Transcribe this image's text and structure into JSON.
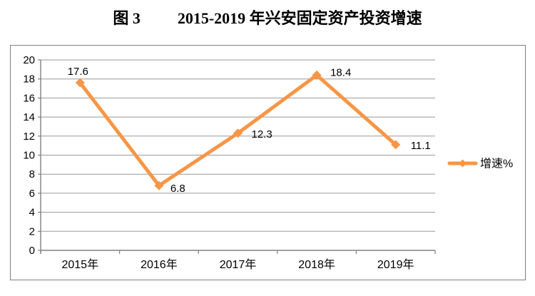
{
  "page": {
    "title_prefix": "图 3",
    "title_main": "2015-2019 年兴安固定资产投资增速"
  },
  "chart_data": {
    "type": "line",
    "title": "图 3 2015-2019 年兴安固定资产投资增速",
    "categories": [
      "2015年",
      "2016年",
      "2017年",
      "2018年",
      "2019年"
    ],
    "series": [
      {
        "name": "增速%",
        "values": [
          17.6,
          6.8,
          12.3,
          18.4,
          11.1
        ]
      }
    ],
    "data_labels": [
      "17.6",
      "6.8",
      "12.3",
      "18.4",
      "11.1"
    ],
    "xlabel": "",
    "ylabel": "",
    "ylim": [
      0,
      20
    ],
    "yticks": [
      0,
      2,
      4,
      6,
      8,
      10,
      12,
      14,
      16,
      18,
      20
    ],
    "grid": true,
    "legend": {
      "label": "增速%",
      "position": "right"
    },
    "colors": {
      "line": "#F79646",
      "marker": "#F79646",
      "gridline": "#999999",
      "axis": "#808080",
      "border": "#808080",
      "text": "#000000",
      "background": "#FFFFFF"
    }
  }
}
